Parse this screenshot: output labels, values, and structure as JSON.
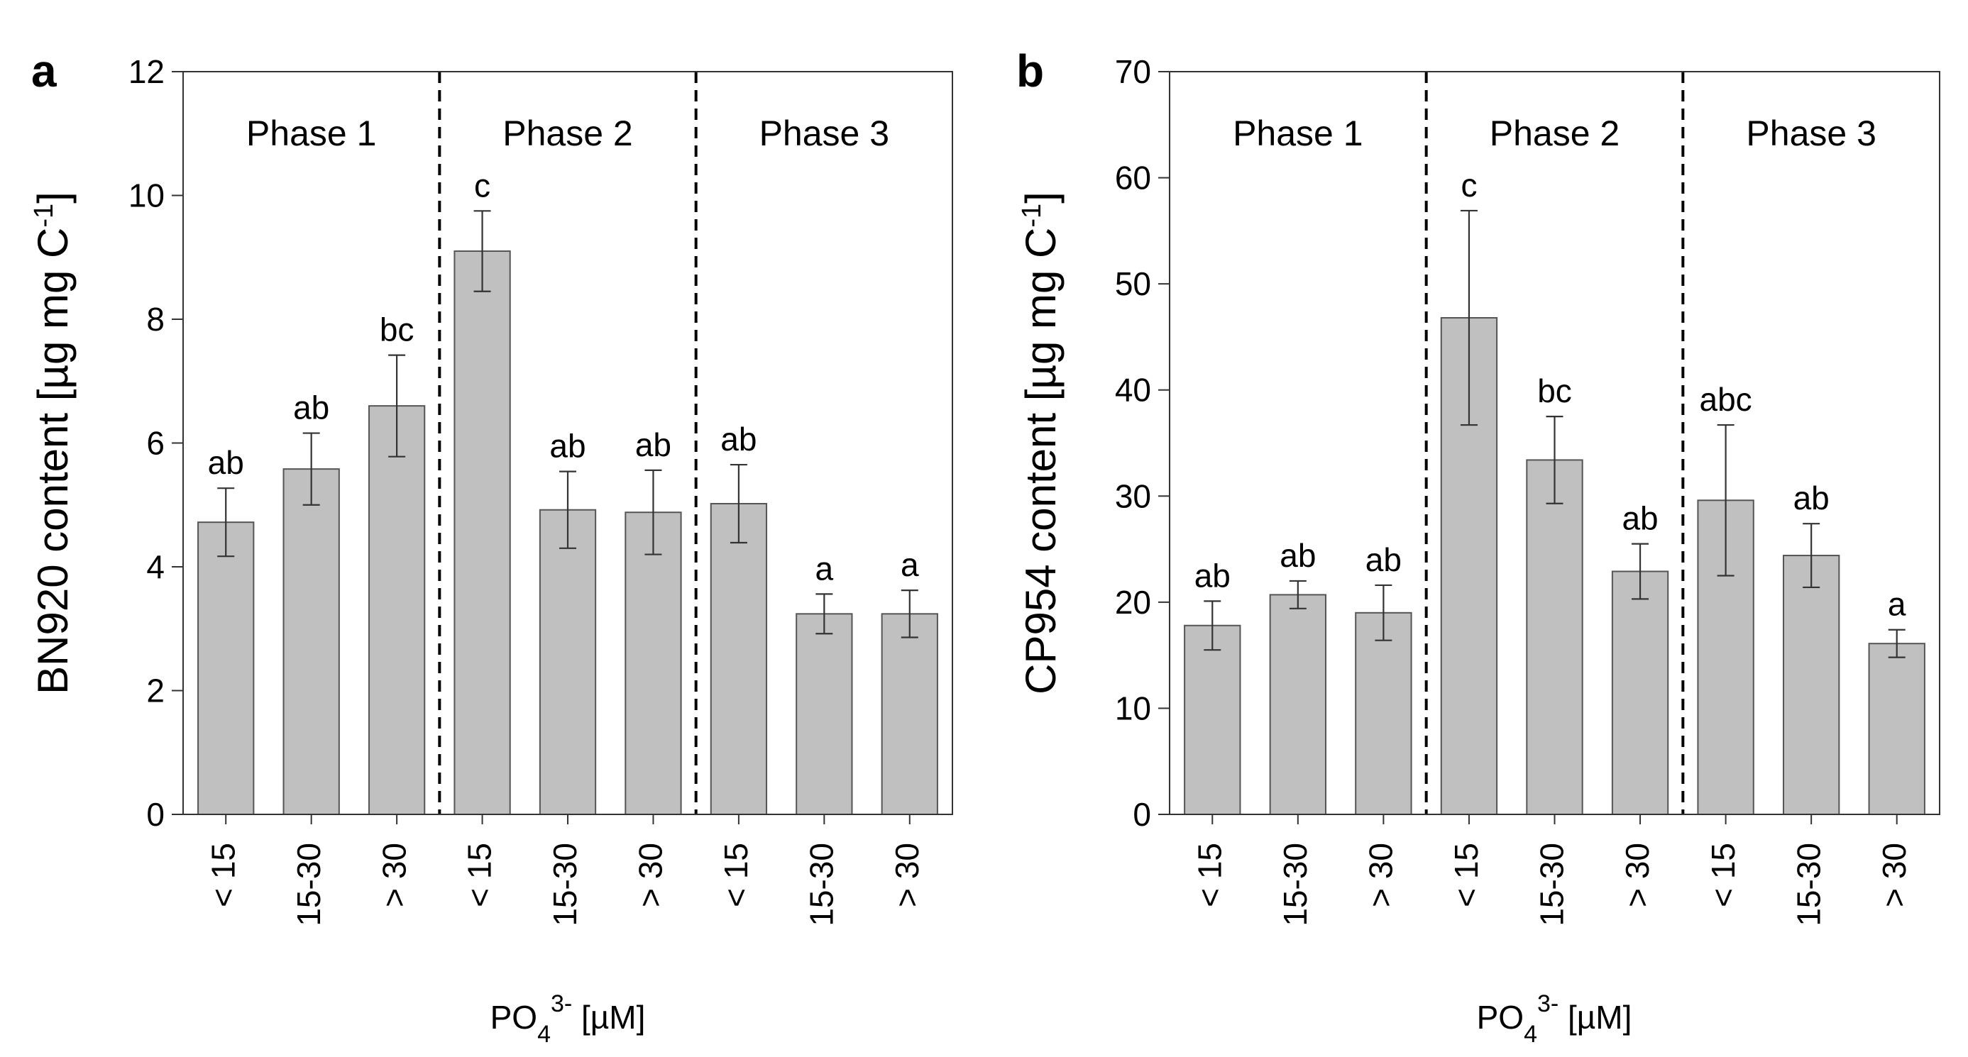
{
  "chart_data": [
    {
      "type": "bar",
      "panel_label": "a",
      "ylabel": "BN920 content [µg  mg C",
      "ylabel_sup": "-1",
      "ylabel_tail": "]",
      "xlabel_pre": "PO",
      "xlabel_sub": "4",
      "xlabel_sup": "3-",
      "xlabel_post": " [µM]",
      "ylim": [
        0,
        12
      ],
      "yticks": [
        0,
        2,
        4,
        6,
        8,
        10,
        12
      ],
      "ytick_labels": [
        "0",
        "2",
        "4",
        "6",
        "8",
        "10",
        "12"
      ],
      "categories": [
        "< 15",
        "15-30",
        "> 30",
        "< 15",
        "15-30",
        "> 30",
        "< 15",
        "15-30",
        "> 30"
      ],
      "values": [
        4.72,
        5.58,
        6.6,
        9.1,
        4.92,
        4.88,
        5.02,
        3.24,
        3.24
      ],
      "errors": [
        0.55,
        0.58,
        0.82,
        0.65,
        0.62,
        0.68,
        0.63,
        0.32,
        0.38
      ],
      "significance": [
        "ab",
        "ab",
        "bc",
        "c",
        "ab",
        "ab",
        "ab",
        "a",
        "a"
      ],
      "phases": [
        "Phase 1",
        "Phase 2",
        "Phase 3"
      ],
      "bar_color": "#c0c0c0",
      "grid": false
    },
    {
      "type": "bar",
      "panel_label": "b",
      "ylabel": "CP954 content [µg  mg C",
      "ylabel_sup": "-1",
      "ylabel_tail": "]",
      "xlabel_pre": "PO",
      "xlabel_sub": "4",
      "xlabel_sup": "3-",
      "xlabel_post": " [µM]",
      "ylim": [
        0,
        70
      ],
      "yticks": [
        0,
        10,
        20,
        30,
        40,
        50,
        60,
        70
      ],
      "ytick_labels": [
        "0",
        "10",
        "20",
        "30",
        "40",
        "50",
        "60",
        "70"
      ],
      "categories": [
        "< 15",
        "15-30",
        "> 30",
        "< 15",
        "15-30",
        "> 30",
        "< 15",
        "15-30",
        "> 30"
      ],
      "values": [
        17.8,
        20.7,
        19.0,
        46.8,
        33.4,
        22.9,
        29.6,
        24.4,
        16.1
      ],
      "errors": [
        2.3,
        1.3,
        2.6,
        10.1,
        4.1,
        2.6,
        7.1,
        3.0,
        1.3
      ],
      "significance": [
        "ab",
        "ab",
        "ab",
        "c",
        "bc",
        "ab",
        "abc",
        "ab",
        "a"
      ],
      "phases": [
        "Phase 1",
        "Phase 2",
        "Phase 3"
      ],
      "bar_color": "#c0c0c0",
      "grid": false
    }
  ]
}
